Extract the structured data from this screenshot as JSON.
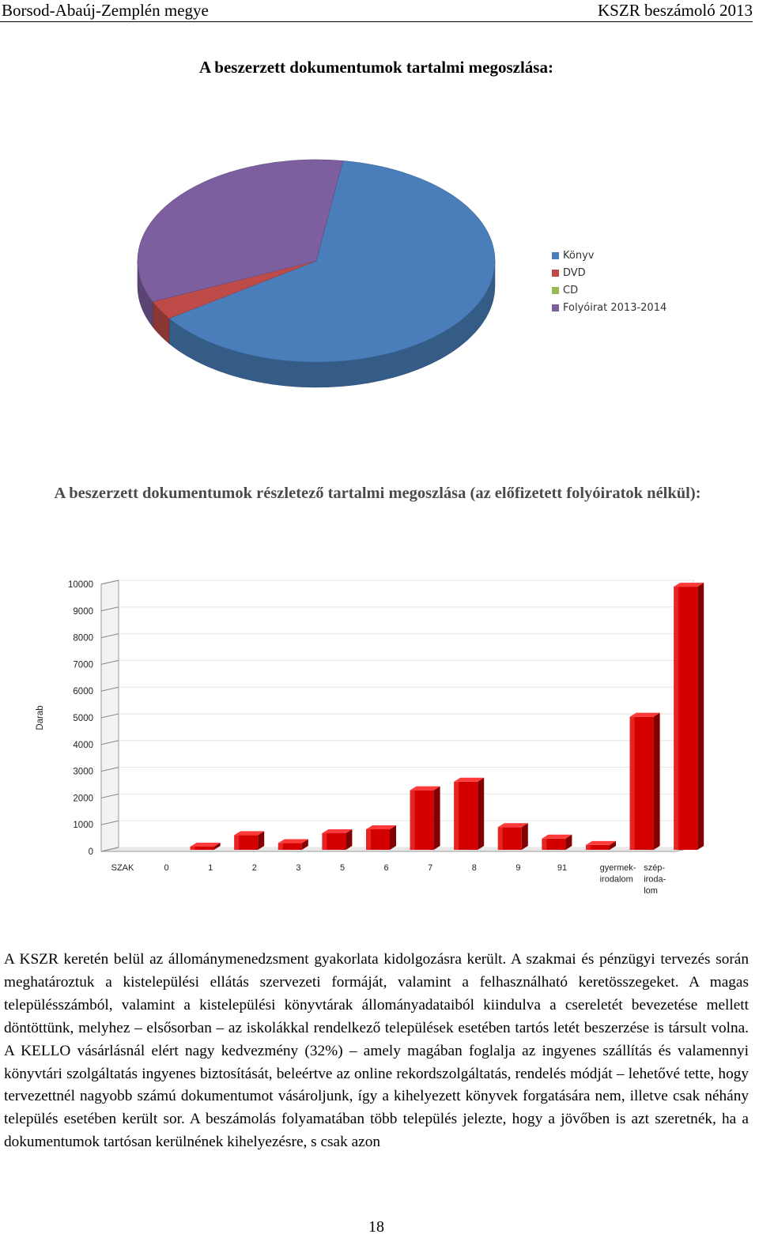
{
  "header": {
    "left": "Borsod-Abaúj-Zemplén megye",
    "right": "KSZR beszámoló 2013"
  },
  "section1": {
    "title": "A beszerzett dokumentumok tartalmi megoszlása:"
  },
  "section2": {
    "title": "A beszerzett dokumentumok részletező tartalmi megoszlása (az előfizetett folyóiratok nélkül):"
  },
  "chart_data": [
    {
      "type": "pie",
      "title": "",
      "labels": [
        "Könyv",
        "DVD",
        "CD",
        "Folyóirat 2013-2014"
      ],
      "values": [
        63,
        3,
        0,
        34
      ],
      "colors": [
        "#4a7ebb",
        "#be4b48",
        "#98b954",
        "#7d5fa0"
      ],
      "legend": "right"
    },
    {
      "type": "bar",
      "ylabel": "Darab",
      "ylim": [
        0,
        10000
      ],
      "yticks": [
        "10000",
        "9000",
        "8000",
        "7000",
        "6000",
        "5000",
        "4000",
        "3000",
        "2000",
        "1000",
        "0"
      ],
      "categories": [
        "SZAK",
        "0",
        "1",
        "2",
        "3",
        "5",
        "6",
        "7",
        "8",
        "9",
        "91",
        "gyermek-irodalom",
        "szép-irodalom"
      ],
      "category_lines": [
        [
          "SZAK"
        ],
        [
          "0"
        ],
        [
          "1"
        ],
        [
          "2"
        ],
        [
          "3"
        ],
        [
          "5"
        ],
        [
          "6"
        ],
        [
          "7"
        ],
        [
          "8"
        ],
        [
          "9"
        ],
        [
          "91"
        ],
        [
          "gyermek-",
          "irodalom"
        ],
        [
          "szép-",
          "iroda-",
          "lom"
        ]
      ],
      "values": [
        0,
        120,
        550,
        250,
        620,
        770,
        2230,
        2550,
        850,
        420,
        180,
        4980,
        9850
      ],
      "color": "#d40000",
      "grid": true
    }
  ],
  "body_text": "A KSZR keretén belül az állománymenedzsment gyakorlata kidolgozásra került. A szakmai és pénzügyi tervezés során meghatároztuk a kistelepülési ellátás szervezeti formáját, valamint a felhasználható keretösszegeket. A magas településszámból, valamint a kistelepülési könyvtárak állományadataiból kiindulva a csereletét bevezetése mellett döntöttünk, melyhez – elsősorban – az iskolákkal rendelkező települések esetében tartós letét beszerzése is társult volna. A KELLO vásárlásnál elért nagy kedvezmény (32%) – amely magában foglalja az ingyenes szállítás és valamennyi könyvtári szolgáltatás ingyenes biztosítását, beleértve az online rekordszolgáltatás, rendelés módját – lehetővé tette, hogy tervezettnél nagyobb számú dokumentumot vásároljunk, így a kihelyezett könyvek forgatására nem, illetve csak néhány település esetében került sor. A beszámolás folyamatában több település jelezte, hogy a jövőben is azt szeretnék, ha a dokumentumok tartósan kerülnének kihelyezésre, s csak azon",
  "page_number": "18"
}
